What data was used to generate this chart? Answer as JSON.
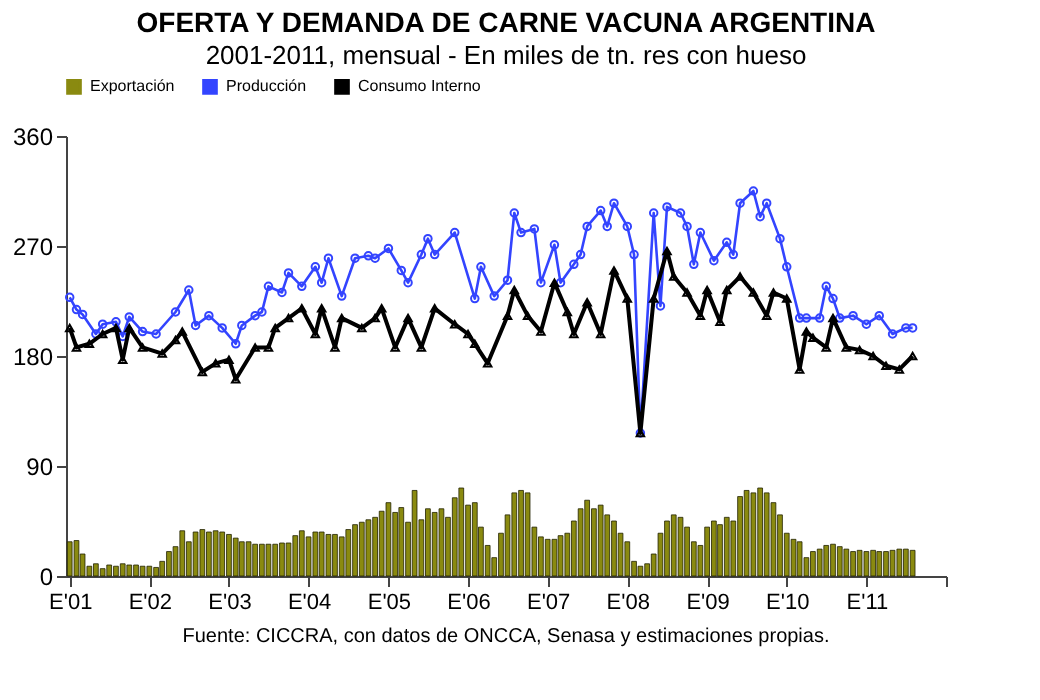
{
  "chart_data": {
    "type": "line",
    "title": "OFERTA Y DEMANDA DE CARNE VACUNA ARGENTINA",
    "subtitle": "2001-2011, mensual - En miles de tn. res con hueso",
    "annotations": [
      "Fuente: CICCRA, con datos de ONCCA, Senasa y estimaciones propias."
    ],
    "xlim": [
      "2000-12-15",
      "2012-01"
    ],
    "xticks": [
      {
        "value": "2001-01",
        "label": "E'01"
      },
      {
        "value": "2002-01",
        "label": "E'02"
      },
      {
        "value": "2003-01",
        "label": "E'03"
      },
      {
        "value": "2004-01",
        "label": "E'04"
      },
      {
        "value": "2005-01",
        "label": "E'05"
      },
      {
        "value": "2006-01",
        "label": "E'06"
      },
      {
        "value": "2007-01",
        "label": "E'07"
      },
      {
        "value": "2008-01",
        "label": "E'08"
      },
      {
        "value": "2009-01",
        "label": "E'09"
      },
      {
        "value": "2010-01",
        "label": "E'10"
      },
      {
        "value": "2011-01",
        "label": "E'11"
      },
      {
        "value": "2012-01",
        "label": null
      }
    ],
    "ylim": [
      0,
      360
    ],
    "yticks": [
      0,
      90,
      180,
      270,
      360
    ],
    "grid": false,
    "legend": "top",
    "series": [
      {
        "name": "Exportación",
        "type": "bar",
        "color": "#8a8a10",
        "x": [
          "2001-01",
          "2001-02",
          "2001-03",
          "2001-04",
          "2001-05",
          "2001-06",
          "2001-07",
          "2001-08",
          "2001-09",
          "2001-10",
          "2001-11",
          "2001-12",
          "2002-01",
          "2002-02",
          "2002-03",
          "2002-04",
          "2002-05",
          "2002-06",
          "2002-07",
          "2002-08",
          "2002-09",
          "2002-10",
          "2002-11",
          "2002-12",
          "2003-01",
          "2003-02",
          "2003-03",
          "2003-04",
          "2003-05",
          "2003-06",
          "2003-07",
          "2003-08",
          "2003-09",
          "2003-10",
          "2003-11",
          "2003-12",
          "2004-01",
          "2004-02",
          "2004-03",
          "2004-04",
          "2004-05",
          "2004-06",
          "2004-07",
          "2004-08",
          "2004-09",
          "2004-10",
          "2004-11",
          "2004-12",
          "2005-01",
          "2005-02",
          "2005-03",
          "2005-04",
          "2005-05",
          "2005-06",
          "2005-07",
          "2005-08",
          "2005-09",
          "2005-10",
          "2005-11",
          "2005-12",
          "2006-01",
          "2006-02",
          "2006-03",
          "2006-04",
          "2006-05",
          "2006-06",
          "2006-07",
          "2006-08",
          "2006-09",
          "2006-10",
          "2006-11",
          "2006-12",
          "2007-01",
          "2007-02",
          "2007-03",
          "2007-04",
          "2007-05",
          "2007-06",
          "2007-07",
          "2007-08",
          "2007-09",
          "2007-10",
          "2007-11",
          "2007-12",
          "2008-01",
          "2008-02",
          "2008-03",
          "2008-04",
          "2008-05",
          "2008-06",
          "2008-07",
          "2008-08",
          "2008-09",
          "2008-10",
          "2008-11",
          "2008-12",
          "2009-01",
          "2009-02",
          "2009-03",
          "2009-04",
          "2009-05",
          "2009-06",
          "2009-07",
          "2009-08",
          "2009-09",
          "2009-10",
          "2009-11",
          "2009-12",
          "2010-01",
          "2010-02",
          "2010-03",
          "2010-04",
          "2010-05",
          "2010-06",
          "2010-07",
          "2010-08",
          "2010-09",
          "2010-10",
          "2010-11",
          "2010-12",
          "2011-01",
          "2011-02",
          "2011-03",
          "2011-04",
          "2011-05",
          "2011-06",
          "2011-07",
          "2011-08"
        ],
        "values": [
          28,
          29,
          18,
          8,
          10,
          6,
          9,
          8,
          10,
          9,
          9,
          8,
          8,
          7,
          12,
          20,
          24,
          37,
          28,
          36,
          38,
          36,
          37,
          36,
          34,
          31,
          28,
          28,
          26,
          26,
          26,
          26,
          27,
          27,
          33,
          37,
          32,
          36,
          36,
          34,
          34,
          32,
          38,
          42,
          44,
          46,
          48,
          53,
          60,
          52,
          56,
          44,
          70,
          46,
          55,
          52,
          55,
          48,
          64,
          72,
          58,
          60,
          40,
          25,
          15,
          35,
          50,
          68,
          70,
          68,
          40,
          32,
          30,
          30,
          33,
          35,
          45,
          55,
          62,
          55,
          58,
          50,
          45,
          35,
          28,
          12,
          8,
          10,
          18,
          35,
          45,
          50,
          48,
          40,
          28,
          25,
          40,
          45,
          42,
          48,
          45,
          65,
          70,
          68,
          72,
          68,
          60,
          50,
          35,
          30,
          28,
          15,
          20,
          22,
          25,
          26,
          24,
          22,
          20,
          21,
          20,
          21,
          20,
          20,
          21,
          22,
          22,
          21
        ]
      },
      {
        "name": "Producción",
        "color": "#3344ff",
        "marker": "circle",
        "x": [
          "2001-01",
          "2001-02",
          "2001-03",
          "2001-05",
          "2001-06",
          "2001-08",
          "2001-09",
          "2001-10",
          "2001-12",
          "2002-02",
          "2002-05",
          "2002-07",
          "2002-08",
          "2002-10",
          "2002-12",
          "2003-02",
          "2003-03",
          "2003-05",
          "2003-06",
          "2003-07",
          "2003-09",
          "2003-10",
          "2003-12",
          "2004-02",
          "2004-03",
          "2004-04",
          "2004-06",
          "2004-08",
          "2004-10",
          "2004-11",
          "2005-01",
          "2005-03",
          "2005-04",
          "2005-06",
          "2005-07",
          "2005-08",
          "2005-11",
          "2006-02",
          "2006-03",
          "2006-05",
          "2006-07",
          "2006-08",
          "2006-09",
          "2006-11",
          "2006-12",
          "2007-02",
          "2007-03",
          "2007-05",
          "2007-06",
          "2007-07",
          "2007-09",
          "2007-10",
          "2007-11",
          "2008-01",
          "2008-02",
          "2008-03",
          "2008-05",
          "2008-06",
          "2008-07",
          "2008-09",
          "2008-10",
          "2008-11",
          "2008-12",
          "2009-02",
          "2009-04",
          "2009-05",
          "2009-06",
          "2009-08",
          "2009-09",
          "2009-10",
          "2009-12",
          "2010-01",
          "2010-03",
          "2010-04",
          "2010-06",
          "2010-07",
          "2010-08",
          "2010-09",
          "2010-11",
          "2011-01",
          "2011-03",
          "2011-05",
          "2011-07",
          "2011-08"
        ],
        "values": [
          228,
          218,
          214,
          198,
          206,
          208,
          196,
          212,
          200,
          198,
          216,
          234,
          205,
          213,
          203,
          190,
          205,
          213,
          216,
          237,
          232,
          248,
          237,
          253,
          240,
          260,
          229,
          260,
          262,
          260,
          268,
          250,
          240,
          263,
          276,
          263,
          281,
          227,
          253,
          229,
          242,
          297,
          281,
          284,
          240,
          271,
          240,
          255,
          263,
          286,
          299,
          286,
          305,
          286,
          263,
          117,
          297,
          221,
          302,
          297,
          286,
          255,
          281,
          258,
          273,
          263,
          305,
          315,
          294,
          305,
          276,
          253,
          211,
          211,
          211,
          237,
          227,
          211,
          213,
          206,
          213,
          198,
          203,
          203
        ]
      },
      {
        "name": "Consumo Interno",
        "color": "#000000",
        "marker": "triangle",
        "x": [
          "2001-01",
          "2001-02",
          "2001-04",
          "2001-06",
          "2001-08",
          "2001-09",
          "2001-10",
          "2001-12",
          "2002-03",
          "2002-05",
          "2002-06",
          "2002-09",
          "2002-11",
          "2003-01",
          "2003-02",
          "2003-05",
          "2003-07",
          "2003-08",
          "2003-10",
          "2003-12",
          "2004-02",
          "2004-03",
          "2004-05",
          "2004-06",
          "2004-09",
          "2004-11",
          "2004-12",
          "2005-02",
          "2005-04",
          "2005-06",
          "2005-08",
          "2005-11",
          "2006-01",
          "2006-02",
          "2006-04",
          "2006-07",
          "2006-08",
          "2006-10",
          "2006-12",
          "2007-02",
          "2007-04",
          "2007-05",
          "2007-07",
          "2007-09",
          "2007-11",
          "2008-01",
          "2008-03",
          "2008-05",
          "2008-07",
          "2008-08",
          "2008-10",
          "2008-12",
          "2009-01",
          "2009-03",
          "2009-04",
          "2009-06",
          "2009-08",
          "2009-10",
          "2009-11",
          "2010-01",
          "2010-03",
          "2010-04",
          "2010-05",
          "2010-07",
          "2010-08",
          "2010-10",
          "2010-12",
          "2011-02",
          "2011-04",
          "2011-06",
          "2011-08"
        ],
        "values": [
          203,
          187,
          190,
          198,
          203,
          177,
          203,
          187,
          182,
          193,
          200,
          167,
          174,
          177,
          161,
          187,
          187,
          203,
          211,
          219,
          198,
          219,
          187,
          211,
          203,
          211,
          219,
          187,
          211,
          187,
          219,
          206,
          198,
          190,
          174,
          213,
          234,
          213,
          200,
          240,
          216,
          198,
          224,
          198,
          250,
          227,
          117,
          227,
          266,
          245,
          232,
          213,
          234,
          208,
          234,
          245,
          232,
          213,
          232,
          227,
          169,
          200,
          195,
          187,
          211,
          187,
          185,
          180,
          172,
          169,
          180
        ]
      }
    ]
  }
}
